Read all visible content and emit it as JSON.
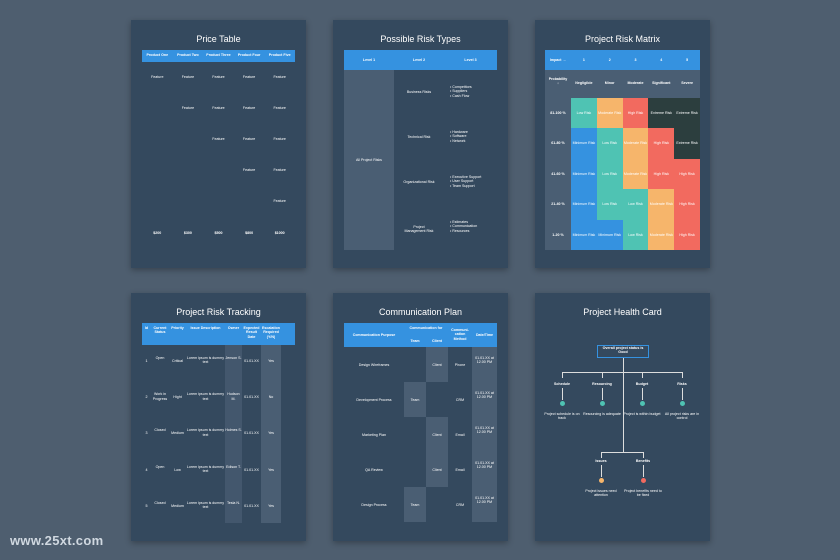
{
  "price": {
    "title": "Price Table",
    "headers": [
      "Product One",
      "Product Two",
      "Product Three",
      "Product Four",
      "Product Five"
    ],
    "feature": "Feature",
    "prices": [
      "$200",
      "$300",
      "$500",
      "$800",
      "$1000"
    ]
  },
  "risk_types": {
    "title": "Possible Risk Types",
    "headers": [
      "Level 1",
      "Level 2",
      "Level 3"
    ],
    "level1": "All Project Risks",
    "rows": [
      {
        "l2": "Business Risks",
        "l3": "• Competitors\n• Suppliers\n• Cash Flow"
      },
      {
        "l2": "Technical Risk",
        "l3": "• Hardware\n• Software\n• Network"
      },
      {
        "l2": "Organizational Risk",
        "l3": "• Executive Support\n• User Support\n• Team Support"
      },
      {
        "l2": "Project\nManagement Risk",
        "l3": "• Estimates\n• Communication\n• Resources"
      }
    ]
  },
  "matrix": {
    "title": "Project Risk Matrix",
    "impact_label": "Impact →",
    "impact_nums": [
      "1",
      "2",
      "3",
      "4",
      "5"
    ],
    "prob_label": "Probability\n↓",
    "impact_names": [
      "Negligible",
      "Minor",
      "Moderate",
      "Significant",
      "Severe"
    ],
    "rows": [
      {
        "label": "81-100 %",
        "cells": [
          "Low Risk",
          "Moderate Risk",
          "High Risk",
          "Extreme Risk",
          "Extreme Risk"
        ]
      },
      {
        "label": "61-80 %",
        "cells": [
          "Minimum Risk",
          "Low Risk",
          "Moderate Risk",
          "High Risk",
          "Extreme Risk"
        ]
      },
      {
        "label": "41-60 %",
        "cells": [
          "Minimum Risk",
          "Low Risk",
          "Moderate Risk",
          "High Risk",
          "High Risk"
        ]
      },
      {
        "label": "21-40 %",
        "cells": [
          "Minimum Risk",
          "Low Risk",
          "Low Risk",
          "Moderate Risk",
          "High Risk"
        ]
      },
      {
        "label": "1-20 %",
        "cells": [
          "Minimum Risk",
          "Minimum Risk",
          "Low Risk",
          "Moderate Risk",
          "High Risk"
        ]
      }
    ],
    "colors": {
      "minimum": "#3592e0",
      "low": "#4fc3b3",
      "moderate": "#f6b56b",
      "high": "#f26a5f",
      "extreme": "#2c3e3e"
    }
  },
  "tracking": {
    "title": "Project Risk Tracking",
    "headers": [
      "Id",
      "Current Status",
      "Priority",
      "Issue Description",
      "Owner",
      "Expected Result Date",
      "Escalation Required (Y/N)"
    ],
    "rows": [
      [
        "1",
        "Open",
        "Critical",
        "Lorem ipsum is dummy text",
        "Jenson S.",
        "01.01.XX",
        "Yes"
      ],
      [
        "2",
        "Work in Progress",
        "Hight",
        "Lorem ipsum is dummy text",
        "Hudson M.",
        "01.01.XX",
        "No"
      ],
      [
        "3",
        "Closed",
        "Medium",
        "Lorem ipsum is dummy text",
        "Holmes S.",
        "01.01.XX",
        "Yes"
      ],
      [
        "4",
        "Open",
        "Low",
        "Lorem ipsum is dummy text",
        "Edison T.",
        "01.01.XX",
        "Yes"
      ],
      [
        "5",
        "Closed",
        "Medium",
        "Lorem ipsum is dummy text",
        "Tesla N.",
        "01.01.XX",
        "Yes"
      ]
    ]
  },
  "comm": {
    "title": "Communication Plan",
    "headers": {
      "purpose": "Communication Purpose",
      "for": "Communication for",
      "team": "Team",
      "client": "Client",
      "method": "Communi-cation Method",
      "time": "Date/Time"
    },
    "rows": [
      {
        "purpose": "Design Wireframes",
        "team": "",
        "client": "Client",
        "method": "Phone",
        "time": "01.01.XX at 12.00 PM"
      },
      {
        "purpose": "Development Process",
        "team": "Team",
        "client": "",
        "method": "CRM",
        "time": "01.01.XX at 12.00 PM"
      },
      {
        "purpose": "Marketing Plan",
        "team": "",
        "client": "Client",
        "method": "Email",
        "time": "01.01.XX at 12.00 PM"
      },
      {
        "purpose": "QA Review",
        "team": "",
        "client": "Client",
        "method": "Email",
        "time": "01.01.XX at 12.00 PM"
      },
      {
        "purpose": "Design Process",
        "team": "Team",
        "client": "",
        "method": "CRM",
        "time": "01.01.XX at 12.00 PM"
      }
    ]
  },
  "health": {
    "title": "Project Health Card",
    "top": "Overall project status is Good",
    "items": [
      {
        "label": "Schedule",
        "text": "Project schedule is on track",
        "color": "#4fc3b3"
      },
      {
        "label": "Resourcing",
        "text": "Resourcing is adequate",
        "color": "#4fc3b3"
      },
      {
        "label": "Budget",
        "text": "Project is within budget",
        "color": "#4fc3b3"
      },
      {
        "label": "Risks",
        "text": "All project risks are in control",
        "color": "#4fc3b3"
      }
    ],
    "bottom": [
      {
        "label": "Issues",
        "text": "Project issues need attention",
        "color": "#f6b56b"
      },
      {
        "label": "Benefits",
        "text": "Project benefits need to be fixed",
        "color": "#f26a5f"
      }
    ]
  },
  "watermark": "www.25xt.com"
}
